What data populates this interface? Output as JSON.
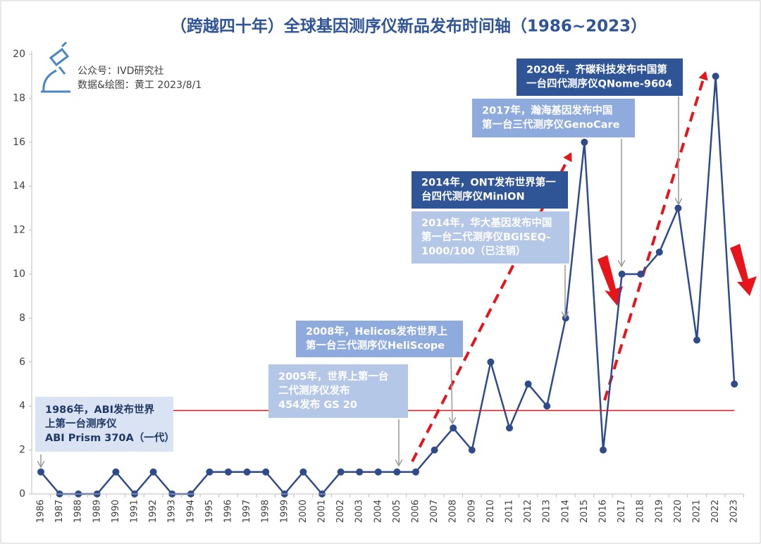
{
  "chart_data": {
    "type": "line",
    "title": "（跨越四十年）全球基因测序仪新品发布时间轴（1986~2023）",
    "source_lines": [
      "公众号：IVD研究社",
      "数据&绘图：黄工 2023/8/1"
    ],
    "categories": [
      "1986",
      "1987",
      "1988",
      "1989",
      "1990",
      "1991",
      "1992",
      "1993",
      "1994",
      "1995",
      "1996",
      "1997",
      "1998",
      "1999",
      "2000",
      "2001",
      "2002",
      "2003",
      "2004",
      "2005",
      "2006",
      "2007",
      "2008",
      "2009",
      "2010",
      "2011",
      "2012",
      "2013",
      "2014",
      "2015",
      "2016",
      "2017",
      "2018",
      "2019",
      "2020",
      "2021",
      "2022",
      "2023"
    ],
    "series": [
      {
        "color": "#2f4b8c",
        "values": [
          1,
          0,
          0,
          0,
          1,
          0,
          1,
          0,
          0,
          1,
          1,
          1,
          1,
          0,
          1,
          0,
          1,
          1,
          1,
          1,
          1,
          2,
          3,
          2,
          6,
          3,
          5,
          4,
          8,
          16,
          2,
          10,
          10,
          11,
          13,
          7,
          19,
          5
        ]
      }
    ],
    "reference_line": {
      "value": 3.8,
      "color": "#e8141b"
    },
    "ylim": [
      0,
      20
    ],
    "yticks": [
      0,
      2,
      4,
      6,
      8,
      10,
      12,
      14,
      16,
      18,
      20
    ],
    "annotations": [
      {
        "lines": [
          "1986年，ABI发布世界",
          "上第一台测序仪",
          "ABI Prism 370A（一代）"
        ]
      },
      {
        "lines": [
          "2005年，世界上第一台",
          "二代测序仪发布",
          "454发布 GS 20"
        ]
      },
      {
        "lines": [
          "2008年，Helicos发布世界上",
          "第一台三代测序仪HeliScope"
        ]
      },
      {
        "lines": [
          "2014年，ONT发布世界第一",
          "台四代测序仪MinION"
        ]
      },
      {
        "lines": [
          "2014年，华大基因发布中国",
          "第一台二代测序仪BGISEQ-",
          "1000/100（已注销）"
        ]
      },
      {
        "lines": [
          "2017年，瀚海基因发布中国",
          "第一台三代测序仪GenoCare"
        ]
      },
      {
        "lines": [
          "2020年，齐碳科技发布中国第",
          "一台四代测序仪QNome-9604"
        ]
      }
    ]
  }
}
